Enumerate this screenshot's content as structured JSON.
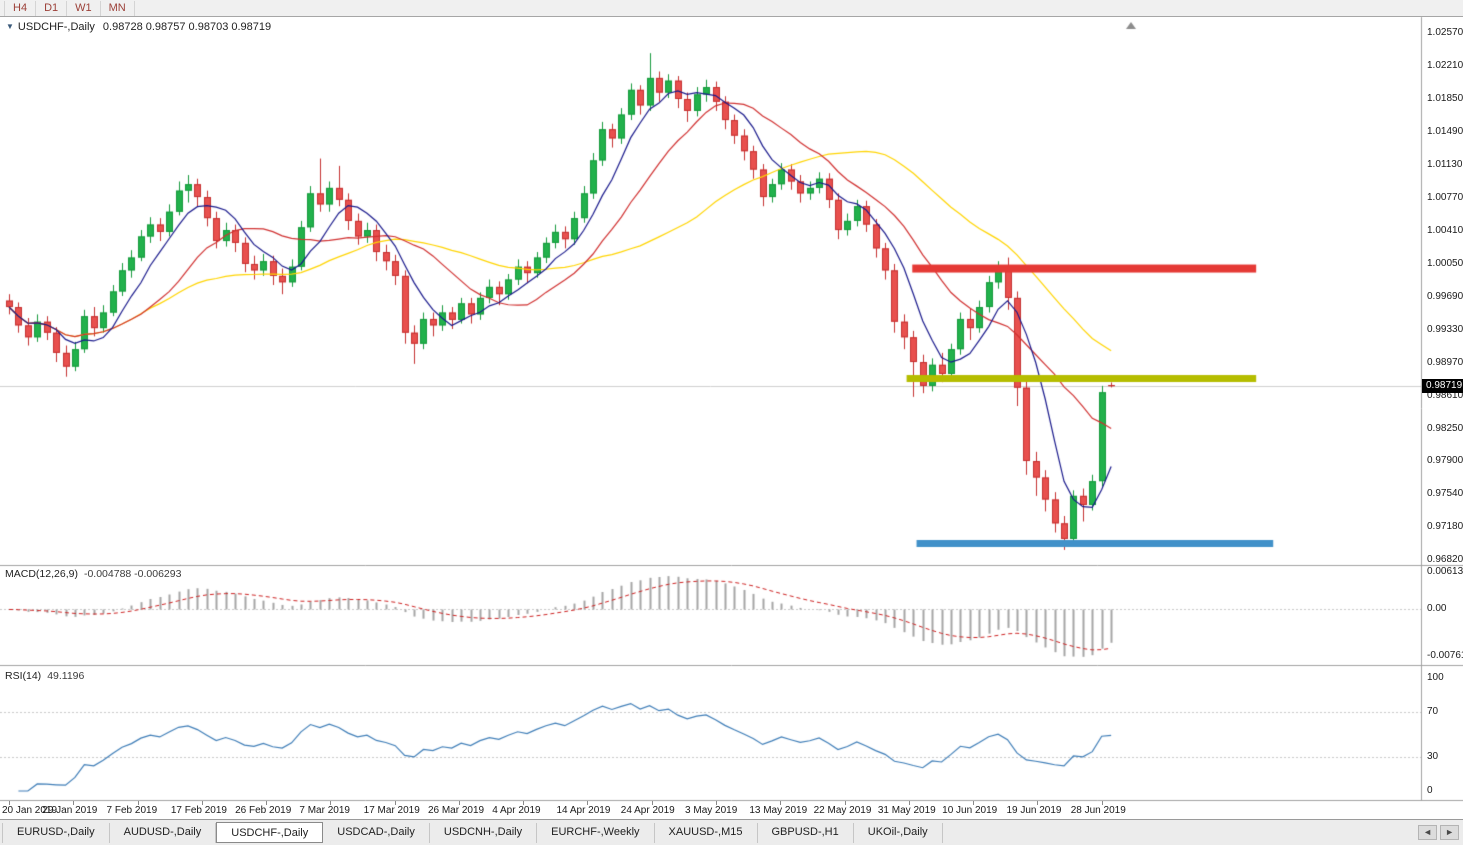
{
  "toolbar": {
    "timeframes": [
      "H4",
      "D1",
      "W1",
      "MN"
    ]
  },
  "chart_header": {
    "collapse_icon": "▼",
    "symbol_label": "USDCHF-,Daily",
    "ohlc": "0.98728 0.98757 0.98703 0.98719"
  },
  "price_axis": {
    "ticks": [
      "1.02570",
      "1.02210",
      "1.01850",
      "1.01490",
      "1.01130",
      "1.00770",
      "1.00410",
      "1.00050",
      "0.99690",
      "0.99330",
      "0.98970",
      "0.98610",
      "0.98250",
      "0.97900",
      "0.97540",
      "0.97180",
      "0.96820"
    ],
    "scale_top": 1.0257,
    "scale_bottom": 0.9682,
    "current_badge": "0.98719",
    "current_price": 0.98719
  },
  "macd_panel": {
    "name": "MACD(12,26,9)",
    "values": "-0.004788 -0.006293",
    "scale_max": 0.00613,
    "scale_min": -0.007612,
    "ticks": [
      {
        "label": "0.00613",
        "value": 0.00613
      },
      {
        "label": "0.00",
        "value": 0
      },
      {
        "label": "-0.007612",
        "value": -0.007612
      }
    ]
  },
  "rsi_panel": {
    "name": "RSI(14)",
    "value": "49.1196",
    "levels": [
      70,
      30
    ],
    "ticks": [
      {
        "label": "100",
        "value": 100
      },
      {
        "label": "70",
        "value": 70
      },
      {
        "label": "30",
        "value": 30
      },
      {
        "label": "0",
        "value": 0
      }
    ]
  },
  "x_axis": {
    "labels": [
      "20 Jan 2019",
      "29 Jan 2019",
      "7 Feb 2019",
      "17 Feb 2019",
      "26 Feb 2019",
      "7 Mar 2019",
      "17 Mar 2019",
      "26 Mar 2019",
      "4 Apr 2019",
      "14 Apr 2019",
      "24 Apr 2019",
      "3 May 2019",
      "13 May 2019",
      "22 May 2019",
      "31 May 2019",
      "10 Jun 2019",
      "19 Jun 2019",
      "28 Jun 2019"
    ]
  },
  "tabs": {
    "active_index": 2,
    "items": [
      "EURUSD-,Daily",
      "AUDUSD-,Daily",
      "USDCHF-,Daily",
      "USDCAD-,Daily",
      "USDCNH-,Daily",
      "EURCHF-,Weekly",
      "XAUUSD-,M15",
      "GBPUSD-,H1",
      "UKOil-,Daily"
    ]
  },
  "scrollbar": {
    "left_arrow": "◄",
    "right_arrow": "►"
  },
  "colors": {
    "timeframe_text": "#9c4038",
    "candle_up": "#22b14c",
    "candle_up_border": "#169a3c",
    "candle_down": "#e8504e",
    "candle_down_border": "#c53030",
    "macd_hist": "#a6a6a6",
    "macd_signal": "#cc1f1f",
    "rsi_line": "#3e7db7",
    "grid": "#c8c8c8",
    "current_price_line": "#cfcfcf",
    "panel_border": "#a0a0a0",
    "axis_text": "#1a1a1a",
    "badge_bg": "#000000",
    "badge_text": "#ffffff",
    "shift_marker": "#8c8c8c"
  },
  "chart_data": {
    "type": "candlestick",
    "title": "USDCHF-,Daily",
    "ylim": [
      0.9682,
      1.0257
    ],
    "candles": [
      [
        0.9965,
        0.9972,
        0.995,
        0.9958
      ],
      [
        0.9958,
        0.9963,
        0.993,
        0.9938
      ],
      [
        0.9938,
        0.9946,
        0.9916,
        0.9925
      ],
      [
        0.9925,
        0.995,
        0.992,
        0.9942
      ],
      [
        0.9942,
        0.9948,
        0.9922,
        0.993
      ],
      [
        0.993,
        0.9936,
        0.9898,
        0.9908
      ],
      [
        0.9908,
        0.9916,
        0.9882,
        0.9893
      ],
      [
        0.9893,
        0.992,
        0.9888,
        0.9912
      ],
      [
        0.9912,
        0.9955,
        0.9908,
        0.9948
      ],
      [
        0.9948,
        0.9958,
        0.9926,
        0.9935
      ],
      [
        0.9935,
        0.996,
        0.993,
        0.9952
      ],
      [
        0.9952,
        0.9982,
        0.9948,
        0.9975
      ],
      [
        0.9975,
        1.0006,
        0.997,
        0.9998
      ],
      [
        0.9998,
        1.002,
        0.999,
        1.0012
      ],
      [
        1.0012,
        1.0042,
        1.0008,
        1.0035
      ],
      [
        1.0035,
        1.0056,
        1.0028,
        1.0048
      ],
      [
        1.0048,
        1.0055,
        1.003,
        1.004
      ],
      [
        1.004,
        1.007,
        1.0035,
        1.0062
      ],
      [
        1.0062,
        1.0095,
        1.0058,
        1.0085
      ],
      [
        1.0085,
        1.0102,
        1.0072,
        1.0092
      ],
      [
        1.0092,
        1.0098,
        1.0068,
        1.0078
      ],
      [
        1.0078,
        1.0085,
        1.0046,
        1.0055
      ],
      [
        1.0055,
        1.0062,
        1.0022,
        1.003
      ],
      [
        1.003,
        1.005,
        1.0024,
        1.0042
      ],
      [
        1.0042,
        1.0048,
        1.0018,
        1.0028
      ],
      [
        1.0028,
        1.0034,
        0.9996,
        1.0005
      ],
      [
        1.0005,
        1.0014,
        0.9988,
        0.9998
      ],
      [
        0.9998,
        1.0016,
        0.9992,
        1.0008
      ],
      [
        1.0008,
        1.0014,
        0.9982,
        0.9992
      ],
      [
        0.9992,
        1.0,
        0.9972,
        0.9985
      ],
      [
        0.9985,
        1.001,
        0.998,
        1.0002
      ],
      [
        1.0002,
        1.0052,
        0.9998,
        1.0045
      ],
      [
        1.0045,
        1.009,
        1.004,
        1.0082
      ],
      [
        1.0082,
        1.012,
        1.0062,
        1.007
      ],
      [
        1.007,
        1.0095,
        1.0062,
        1.0088
      ],
      [
        1.0088,
        1.0112,
        1.0068,
        1.0075
      ],
      [
        1.0075,
        1.0082,
        1.0042,
        1.0052
      ],
      [
        1.0052,
        1.006,
        1.0026,
        1.0035
      ],
      [
        1.0035,
        1.005,
        1.0028,
        1.0042
      ],
      [
        1.0042,
        1.0048,
        1.0008,
        1.0018
      ],
      [
        1.0018,
        1.0026,
        0.9998,
        1.0008
      ],
      [
        1.0008,
        1.0015,
        0.9982,
        0.9992
      ],
      [
        0.9992,
        0.9998,
        0.9918,
        0.993
      ],
      [
        0.993,
        0.9938,
        0.9896,
        0.9918
      ],
      [
        0.9918,
        0.9952,
        0.9912,
        0.9945
      ],
      [
        0.9945,
        0.9952,
        0.9926,
        0.9938
      ],
      [
        0.9938,
        0.996,
        0.9932,
        0.9952
      ],
      [
        0.9952,
        0.9958,
        0.9934,
        0.9944
      ],
      [
        0.9944,
        0.9968,
        0.994,
        0.9962
      ],
      [
        0.9962,
        0.9968,
        0.994,
        0.995
      ],
      [
        0.995,
        0.9974,
        0.9944,
        0.9968
      ],
      [
        0.9968,
        0.9988,
        0.9962,
        0.998
      ],
      [
        0.998,
        0.9986,
        0.996,
        0.9972
      ],
      [
        0.9972,
        0.9994,
        0.9966,
        0.9988
      ],
      [
        0.9988,
        1.001,
        0.9982,
        1.0002
      ],
      [
        1.0002,
        1.0008,
        0.9984,
        0.9995
      ],
      [
        0.9995,
        1.0018,
        0.999,
        1.0012
      ],
      [
        1.0012,
        1.0034,
        1.0006,
        1.0028
      ],
      [
        1.0028,
        1.0048,
        1.0022,
        1.004
      ],
      [
        1.004,
        1.0046,
        1.0022,
        1.0032
      ],
      [
        1.0032,
        1.0062,
        1.0026,
        1.0055
      ],
      [
        1.0055,
        1.009,
        1.005,
        1.0082
      ],
      [
        1.0082,
        1.0126,
        1.0076,
        1.0118
      ],
      [
        1.0118,
        1.016,
        1.0112,
        1.0152
      ],
      [
        1.0152,
        1.0158,
        1.0132,
        1.0142
      ],
      [
        1.0142,
        1.0175,
        1.0136,
        1.0168
      ],
      [
        1.0168,
        1.0202,
        1.0162,
        1.0195
      ],
      [
        1.0195,
        1.02,
        1.0168,
        1.0178
      ],
      [
        1.0178,
        1.0235,
        1.0172,
        1.0208
      ],
      [
        1.0208,
        1.0215,
        1.0182,
        1.0192
      ],
      [
        1.0192,
        1.0212,
        1.0186,
        1.0205
      ],
      [
        1.0205,
        1.021,
        1.0175,
        1.0185
      ],
      [
        1.0185,
        1.0192,
        1.016,
        1.0172
      ],
      [
        1.0172,
        1.0198,
        1.0166,
        1.019
      ],
      [
        1.019,
        1.0206,
        1.0182,
        1.0198
      ],
      [
        1.0198,
        1.0204,
        1.0172,
        1.0182
      ],
      [
        1.0182,
        1.0188,
        1.0152,
        1.0162
      ],
      [
        1.0162,
        1.0168,
        1.0136,
        1.0145
      ],
      [
        1.0145,
        1.0152,
        1.0118,
        1.0128
      ],
      [
        1.0128,
        1.0134,
        1.0098,
        1.0108
      ],
      [
        1.0108,
        1.0114,
        1.0068,
        1.0078
      ],
      [
        1.0078,
        1.0098,
        1.0072,
        1.0092
      ],
      [
        1.0092,
        1.0115,
        1.0086,
        1.0108
      ],
      [
        1.0108,
        1.0114,
        1.0086,
        1.0095
      ],
      [
        1.0095,
        1.0102,
        1.0072,
        1.0082
      ],
      [
        1.0082,
        1.0095,
        1.0075,
        1.0088
      ],
      [
        1.0088,
        1.0105,
        1.0082,
        1.0098
      ],
      [
        1.0098,
        1.0104,
        1.0066,
        1.0075
      ],
      [
        1.0075,
        1.0082,
        1.0032,
        1.0042
      ],
      [
        1.0042,
        1.006,
        1.0036,
        1.0052
      ],
      [
        1.0052,
        1.0075,
        1.0046,
        1.0068
      ],
      [
        1.0068,
        1.0074,
        1.004,
        1.0048
      ],
      [
        1.0048,
        1.0054,
        1.0012,
        1.0022
      ],
      [
        1.0022,
        1.0028,
        0.9988,
        0.9998
      ],
      [
        0.9998,
        1.0005,
        0.993,
        0.9942
      ],
      [
        0.9942,
        0.995,
        0.9912,
        0.9925
      ],
      [
        0.9925,
        0.9932,
        0.986,
        0.9898
      ],
      [
        0.9898,
        0.9906,
        0.9864,
        0.9872
      ],
      [
        0.9872,
        0.9902,
        0.9866,
        0.9895
      ],
      [
        0.9895,
        0.9908,
        0.9876,
        0.9885
      ],
      [
        0.9885,
        0.9918,
        0.988,
        0.9912
      ],
      [
        0.9912,
        0.9952,
        0.9906,
        0.9945
      ],
      [
        0.9945,
        0.9956,
        0.9922,
        0.9935
      ],
      [
        0.9935,
        0.9965,
        0.993,
        0.9958
      ],
      [
        0.9958,
        0.9992,
        0.9952,
        0.9985
      ],
      [
        0.9985,
        1.0008,
        0.9978,
        0.9998
      ],
      [
        0.9998,
        1.0012,
        0.9955,
        0.9968
      ],
      [
        0.9968,
        0.9975,
        0.985,
        0.987
      ],
      [
        0.987,
        0.9878,
        0.9775,
        0.979
      ],
      [
        0.979,
        0.98,
        0.9752,
        0.9772
      ],
      [
        0.9772,
        0.978,
        0.9735,
        0.9748
      ],
      [
        0.9748,
        0.9756,
        0.9712,
        0.9722
      ],
      [
        0.9722,
        0.973,
        0.9693,
        0.9705
      ],
      [
        0.9705,
        0.9758,
        0.97,
        0.9752
      ],
      [
        0.9752,
        0.976,
        0.9724,
        0.9742
      ],
      [
        0.9742,
        0.9775,
        0.9736,
        0.9768
      ],
      [
        0.9768,
        0.9872,
        0.9762,
        0.9865
      ],
      [
        0.98728,
        0.98757,
        0.98703,
        0.98719
      ]
    ],
    "moving_averages": [
      {
        "period": 32,
        "color": "#ffd400"
      },
      {
        "period": 14,
        "color": "#d03030"
      },
      {
        "period": 6,
        "color": "#1a1a8c"
      }
    ],
    "objects": [
      {
        "name": "resistance-band",
        "price": 1.0,
        "x1": 0.642,
        "x2": 0.884,
        "thickness": 8,
        "color": "#e53935"
      },
      {
        "name": "pivot-band",
        "price": 0.988,
        "x1": 0.638,
        "x2": 0.884,
        "thickness": 7,
        "color": "#b5bd00"
      },
      {
        "name": "support-band",
        "price": 0.97,
        "x1": 0.645,
        "x2": 0.896,
        "thickness": 7,
        "color": "#4191c9"
      }
    ],
    "indicators": [
      {
        "type": "MACD",
        "params": [
          12,
          26,
          9
        ],
        "display": "-0.004788 -0.006293"
      },
      {
        "type": "RSI",
        "params": [
          14
        ],
        "display": "49.1196"
      }
    ]
  }
}
